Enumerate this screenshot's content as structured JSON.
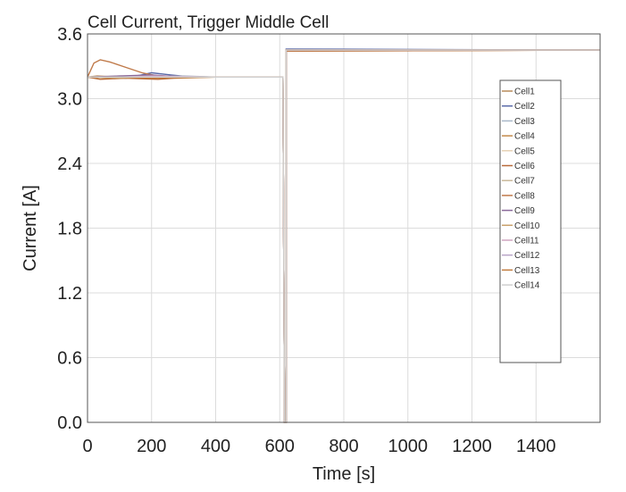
{
  "chart_data": {
    "type": "line",
    "title": "Cell Current, Trigger Middle Cell",
    "xlabel": "Time [s]",
    "ylabel": "Current [A]",
    "xlim": [
      0,
      1600
    ],
    "ylim": [
      0,
      3.6
    ],
    "xticks": [
      0,
      200,
      400,
      600,
      800,
      1000,
      1200,
      1400
    ],
    "yticks": [
      "0.0",
      "0.6",
      "1.2",
      "1.8",
      "2.4",
      "3.0",
      "3.6"
    ],
    "grid": true,
    "legend_position": "right",
    "trigger_time": 615,
    "series": [
      {
        "name": "Cell1",
        "color": "#b88a5a",
        "points": [
          [
            0,
            3.2
          ],
          [
            30,
            3.21
          ],
          [
            100,
            3.2
          ],
          [
            200,
            3.21
          ],
          [
            300,
            3.2
          ],
          [
            400,
            3.2
          ],
          [
            610,
            3.2
          ],
          [
            615,
            0
          ],
          [
            620,
            0
          ],
          [
            620,
            3.45
          ],
          [
            1600,
            3.45
          ]
        ]
      },
      {
        "name": "Cell2",
        "color": "#5a6aa8",
        "points": [
          [
            0,
            3.2
          ],
          [
            60,
            3.2
          ],
          [
            120,
            3.19
          ],
          [
            200,
            3.24
          ],
          [
            260,
            3.22
          ],
          [
            330,
            3.2
          ],
          [
            400,
            3.2
          ],
          [
            610,
            3.2
          ],
          [
            615,
            0
          ],
          [
            620,
            0
          ],
          [
            620,
            3.46
          ],
          [
            1600,
            3.45
          ]
        ]
      },
      {
        "name": "Cell3",
        "color": "#a9b8c9",
        "points": [
          [
            0,
            3.2
          ],
          [
            100,
            3.21
          ],
          [
            200,
            3.2
          ],
          [
            300,
            3.21
          ],
          [
            400,
            3.2
          ],
          [
            610,
            3.2
          ],
          [
            615,
            0
          ],
          [
            620,
            0
          ],
          [
            620,
            3.45
          ],
          [
            1600,
            3.45
          ]
        ]
      },
      {
        "name": "Cell4",
        "color": "#c48a4a",
        "points": [
          [
            0,
            3.2
          ],
          [
            80,
            3.19
          ],
          [
            180,
            3.2
          ],
          [
            280,
            3.19
          ],
          [
            400,
            3.2
          ],
          [
            610,
            3.2
          ],
          [
            615,
            0
          ],
          [
            620,
            0
          ],
          [
            620,
            3.44
          ],
          [
            1600,
            3.45
          ]
        ]
      },
      {
        "name": "Cell5",
        "color": "#e6d2b5",
        "points": [
          [
            0,
            3.2
          ],
          [
            100,
            3.2
          ],
          [
            200,
            3.2
          ],
          [
            400,
            3.2
          ],
          [
            610,
            3.2
          ],
          [
            615,
            0
          ],
          [
            620,
            0
          ],
          [
            620,
            3.45
          ],
          [
            1600,
            3.45
          ]
        ]
      },
      {
        "name": "Cell6",
        "color": "#b86a3a",
        "points": [
          [
            0,
            3.2
          ],
          [
            40,
            3.18
          ],
          [
            120,
            3.19
          ],
          [
            220,
            3.18
          ],
          [
            320,
            3.2
          ],
          [
            400,
            3.2
          ],
          [
            610,
            3.2
          ],
          [
            615,
            0
          ],
          [
            620,
            0
          ],
          [
            620,
            3.45
          ],
          [
            1600,
            3.45
          ]
        ]
      },
      {
        "name": "Cell7",
        "color": "#c9b89a",
        "points": [
          [
            0,
            3.2
          ],
          [
            100,
            3.2
          ],
          [
            200,
            3.21
          ],
          [
            400,
            3.2
          ],
          [
            610,
            3.2
          ],
          [
            615,
            0
          ],
          [
            620,
            0
          ],
          [
            620,
            3.45
          ],
          [
            1600,
            3.45
          ]
        ]
      },
      {
        "name": "Cell8",
        "color": "#c07a4a",
        "points": [
          [
            0,
            3.2
          ],
          [
            20,
            3.33
          ],
          [
            40,
            3.36
          ],
          [
            70,
            3.34
          ],
          [
            120,
            3.29
          ],
          [
            170,
            3.24
          ],
          [
            220,
            3.21
          ],
          [
            280,
            3.2
          ],
          [
            360,
            3.2
          ],
          [
            610,
            3.2
          ],
          [
            615,
            0
          ],
          [
            620,
            0
          ],
          [
            620,
            3.44
          ],
          [
            1600,
            3.45
          ]
        ]
      },
      {
        "name": "Cell9",
        "color": "#8a6a9a",
        "points": [
          [
            0,
            3.2
          ],
          [
            100,
            3.21
          ],
          [
            200,
            3.22
          ],
          [
            300,
            3.2
          ],
          [
            400,
            3.2
          ],
          [
            610,
            3.2
          ],
          [
            615,
            0
          ],
          [
            620,
            0
          ],
          [
            620,
            3.45
          ],
          [
            1600,
            3.45
          ]
        ]
      },
      {
        "name": "Cell10",
        "color": "#c9a06a",
        "points": [
          [
            0,
            3.2
          ],
          [
            100,
            3.19
          ],
          [
            200,
            3.2
          ],
          [
            400,
            3.2
          ],
          [
            610,
            3.2
          ],
          [
            615,
            0
          ],
          [
            620,
            0
          ],
          [
            620,
            3.45
          ],
          [
            1600,
            3.45
          ]
        ]
      },
      {
        "name": "Cell11",
        "color": "#d0a6c0",
        "points": [
          [
            0,
            3.2
          ],
          [
            100,
            3.2
          ],
          [
            200,
            3.21
          ],
          [
            400,
            3.2
          ],
          [
            610,
            3.2
          ],
          [
            615,
            0
          ],
          [
            620,
            0
          ],
          [
            620,
            3.45
          ],
          [
            1600,
            3.45
          ]
        ]
      },
      {
        "name": "Cell12",
        "color": "#b9a6c9",
        "points": [
          [
            0,
            3.2
          ],
          [
            100,
            3.2
          ],
          [
            200,
            3.2
          ],
          [
            400,
            3.2
          ],
          [
            610,
            3.2
          ],
          [
            615,
            0
          ],
          [
            620,
            0
          ],
          [
            620,
            3.45
          ],
          [
            1600,
            3.45
          ]
        ]
      },
      {
        "name": "Cell13",
        "color": "#c27c3e",
        "points": [
          [
            0,
            3.2
          ],
          [
            100,
            3.2
          ],
          [
            200,
            3.19
          ],
          [
            400,
            3.2
          ],
          [
            610,
            3.2
          ],
          [
            615,
            0
          ],
          [
            620,
            0
          ],
          [
            620,
            3.45
          ],
          [
            1600,
            3.45
          ]
        ]
      },
      {
        "name": "Cell14",
        "color": "#cfcfcf",
        "points": [
          [
            0,
            3.2
          ],
          [
            100,
            3.2
          ],
          [
            200,
            3.2
          ],
          [
            400,
            3.2
          ],
          [
            610,
            3.2
          ],
          [
            615,
            0
          ],
          [
            620,
            0
          ],
          [
            620,
            3.45
          ],
          [
            1600,
            3.45
          ]
        ]
      }
    ]
  }
}
